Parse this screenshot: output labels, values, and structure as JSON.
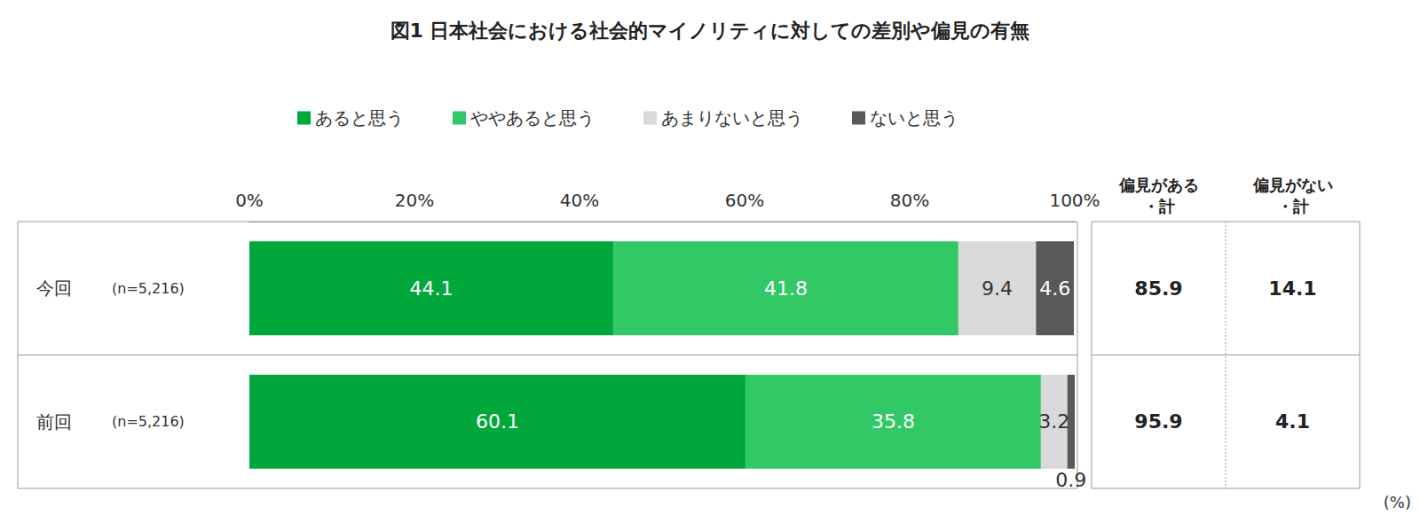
{
  "chart_data": {
    "type": "bar",
    "title": "図1 日本社会における社会的マイノリティに対しての差別や偏見の有無",
    "orientation": "horizontal",
    "stacked": true,
    "data_labels": true,
    "categories": [
      "今回",
      "前回"
    ],
    "sample_sizes": [
      "(n=5,216)",
      "(n=5,216)"
    ],
    "series": [
      {
        "name": "あると思う",
        "color": "#00a83c",
        "values": [
          44.1,
          60.1
        ]
      },
      {
        "name": "ややあると思う",
        "color": "#33c866",
        "values": [
          41.8,
          35.8
        ]
      },
      {
        "name": "あまりないと思う",
        "color": "#d9d9d9",
        "values": [
          9.4,
          3.2
        ]
      },
      {
        "name": "ないと思う",
        "color": "#595959",
        "values": [
          4.6,
          0.9
        ]
      }
    ],
    "xlim": [
      0,
      100
    ],
    "xticks": [
      {
        "value": 0,
        "label": "0%"
      },
      {
        "value": 20,
        "label": "20%"
      },
      {
        "value": 40,
        "label": "40%"
      },
      {
        "value": 60,
        "label": "60%"
      },
      {
        "value": 80,
        "label": "80%"
      },
      {
        "value": 100,
        "label": "100%"
      }
    ],
    "totals": [
      {
        "name": "偏見がある\n・計",
        "values": [
          85.9,
          95.9
        ]
      },
      {
        "name": "偏見がない\n・計",
        "values": [
          14.1,
          4.1
        ]
      }
    ],
    "unit": "(%)"
  }
}
